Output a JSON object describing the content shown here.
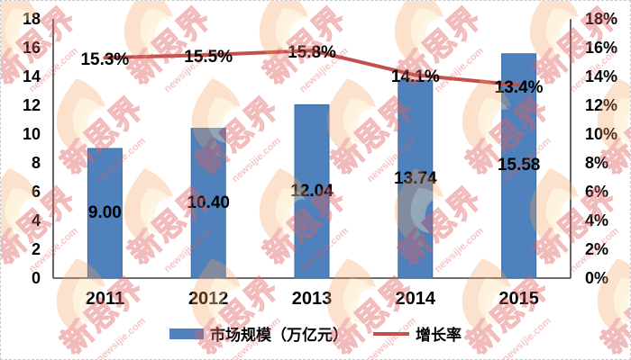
{
  "chart_data": {
    "type": "bar+line",
    "title": "",
    "categories": [
      "2011",
      "2012",
      "2013",
      "2014",
      "2015"
    ],
    "series": [
      {
        "name": "市场规模（万亿元）",
        "chart_type": "bar",
        "axis": "left",
        "color": "#4f81bd",
        "border_color": "#3a6ca3",
        "values": [
          9.0,
          10.4,
          12.04,
          13.74,
          15.58
        ],
        "labels": [
          "9.00",
          "10.40",
          "12.04",
          "13.74",
          "15.58"
        ]
      },
      {
        "name": "增长率",
        "chart_type": "line",
        "axis": "right",
        "color": "#c0504d",
        "values": [
          15.3,
          15.5,
          15.8,
          14.1,
          13.4
        ],
        "labels": [
          "15.3%",
          "15.5%",
          "15.8%",
          "14.1%",
          "13.4%"
        ]
      }
    ],
    "left_axis": {
      "min": 0,
      "max": 18,
      "step": 2,
      "ticks": [
        "18",
        "16",
        "14",
        "12",
        "10",
        "8",
        "6",
        "4",
        "2",
        "0"
      ]
    },
    "right_axis": {
      "min": 0,
      "max": 18,
      "step": 2,
      "ticks": [
        "18%",
        "16%",
        "14%",
        "12%",
        "10%",
        "8%",
        "6%",
        "4%",
        "2%",
        "0%"
      ]
    },
    "grid": false,
    "legend": {
      "position": "bottom",
      "items": [
        {
          "label": "市场规模（万亿元）",
          "swatch": "bar",
          "color": "#4f81bd"
        },
        {
          "label": "增长率",
          "swatch": "line",
          "color": "#c0504d"
        }
      ]
    },
    "axis_line_color": "#3f3f3f",
    "label_color": "#000000"
  },
  "watermark": {
    "brand": "新思界",
    "domain": "newsijie.com",
    "text_color": "#e06060",
    "flame_outer_color": "#f3a05c",
    "flame_inner_color": "#fce4b6"
  }
}
